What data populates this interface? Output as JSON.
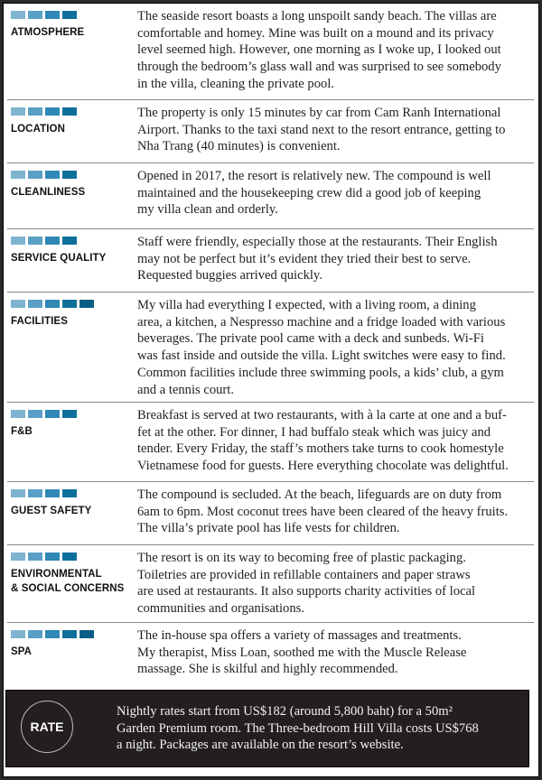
{
  "rating_colors": [
    "#7fb3d0",
    "#5aa0c6",
    "#2f88b5",
    "#0f6f9b",
    "#0a5d85"
  ],
  "sections": [
    {
      "label": [
        "ATMOSPHERE"
      ],
      "rating": 4,
      "lines": [
        "The seaside resort boasts a long unspoilt sandy beach. The villas are",
        "comfortable and homey. Mine was built on a mound and its privacy",
        "level seemed high. However, one morning as I woke up, I looked out",
        "through the bedroom’s glass wall and was surprised to see somebody",
        "in the villa, cleaning the private pool."
      ]
    },
    {
      "label": [
        "LOCATION"
      ],
      "rating": 4,
      "lines": [
        "The property is only 15 minutes by car from Cam Ranh International",
        "Airport. Thanks to the taxi stand next to the resort entrance, getting to",
        "Nha Trang (40 minutes) is convenient."
      ]
    },
    {
      "label": [
        "CLEANLINESS"
      ],
      "rating": 4,
      "lines": [
        "Opened in 2017, the resort is relatively new. The compound is well",
        "maintained and the housekeeping crew did a good job of keeping",
        "my villa clean and orderly."
      ]
    },
    {
      "label": [
        "SERVICE QUALITY"
      ],
      "rating": 4,
      "lines": [
        "Staff were friendly, especially those at the restaurants. Their English",
        "may not be perfect but it’s evident they tried their best to serve.",
        "Requested buggies arrived quickly."
      ]
    },
    {
      "label": [
        "FACILITIES"
      ],
      "rating": 5,
      "lines": [
        "My villa had everything I expected, with a living room, a dining",
        "area, a kitchen, a Nespresso machine and a fridge loaded with various",
        "beverages. The private pool came with a deck and sunbeds. Wi-Fi",
        "was fast inside and outside the villa. Light switches were easy to find.",
        "Common facilities include three swimming pools, a kids’ club, a gym",
        "and a tennis court."
      ]
    },
    {
      "label": [
        "F&B"
      ],
      "rating": 4,
      "lines": [
        "Breakfast is served at two restaurants, with à la carte at one and a buf-",
        "fet at the other. For dinner, I had buffalo steak which was juicy and",
        "tender. Every Friday, the staff’s mothers take turns to cook homestyle",
        "Vietnamese food for guests. Here everything chocolate was delightful."
      ]
    },
    {
      "label": [
        "GUEST SAFETY"
      ],
      "rating": 4,
      "lines": [
        "The compound is secluded. At the beach, lifeguards are on duty from",
        "6am to 6pm. Most coconut trees have been cleared of the heavy fruits.",
        "The villa’s private pool has life vests for children."
      ]
    },
    {
      "label": [
        "ENVIRONMENTAL",
        "& SOCIAL CONCERNS"
      ],
      "rating": 4,
      "lines": [
        "The resort is on its way to becoming free of plastic packaging.",
        "Toiletries are provided in refillable containers and paper straws",
        "are used at restaurants. It also supports charity activities of local",
        "communities and organisations."
      ]
    },
    {
      "label": [
        "SPA"
      ],
      "rating": 5,
      "lines": [
        "The in-house spa offers a variety of massages and treatments.",
        "My therapist, Miss Loan, soothed me with the Muscle Release",
        "massage. She is skilful and highly recommended."
      ]
    }
  ],
  "rate": {
    "label": "RATE",
    "lines": [
      "Nightly rates start from US$182 (around 5,800 baht) for a 50m²",
      "Garden Premium room. The Three-bedroom Hill Villa costs US$768",
      "a night. Packages are available on the resort’s website."
    ]
  }
}
